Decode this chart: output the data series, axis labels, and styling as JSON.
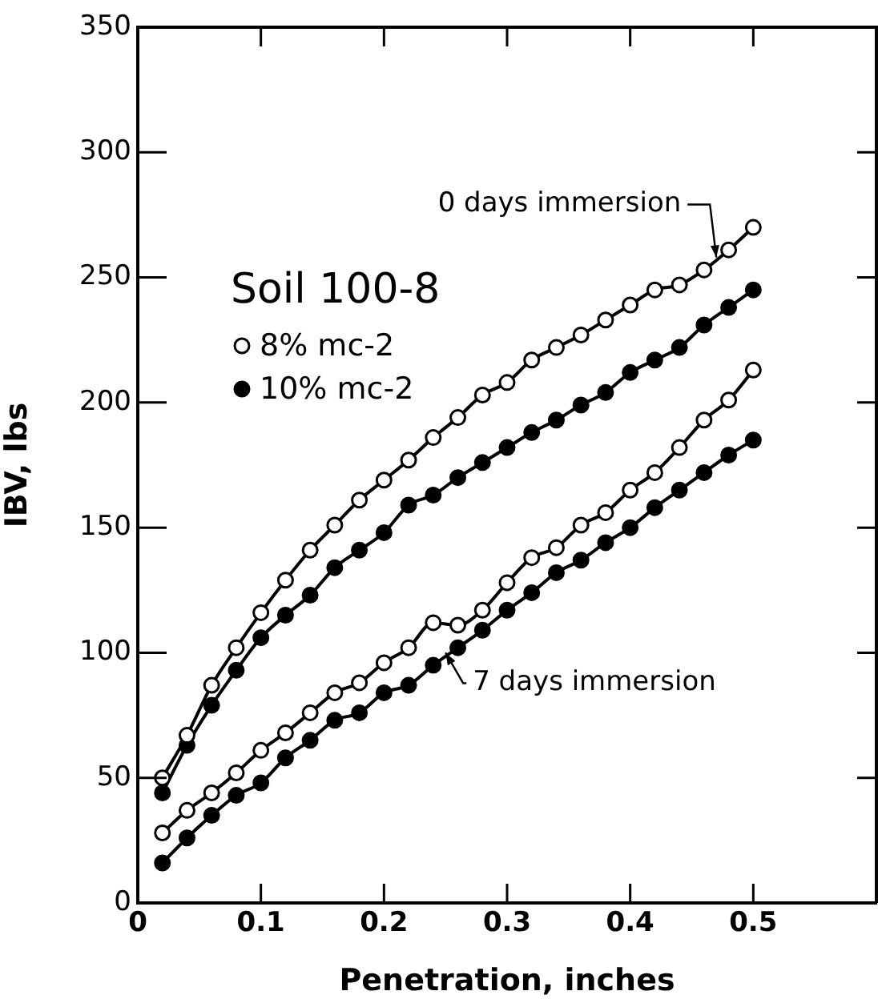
{
  "chart_data": {
    "type": "line",
    "xlabel": "Penetration, inches",
    "ylabel": "IBV, lbs",
    "legend_title": "Soil 100-8",
    "legend": "top left",
    "marker": "circle",
    "line_style": "solid",
    "grid": false,
    "xlim": [
      0,
      0.6
    ],
    "xticks": [
      0,
      0.1,
      0.2,
      0.3,
      0.4,
      0.5
    ],
    "ylim": [
      0,
      350
    ],
    "yticks": [
      0,
      50,
      100,
      150,
      200,
      250,
      300,
      350
    ],
    "x": [
      0.02,
      0.04,
      0.06,
      0.08,
      0.1,
      0.12,
      0.14,
      0.16,
      0.18,
      0.2,
      0.22,
      0.24,
      0.26,
      0.28,
      0.3,
      0.32,
      0.34,
      0.36,
      0.38,
      0.4,
      0.42,
      0.44,
      0.46,
      0.48,
      0.5
    ],
    "series": [
      {
        "name": "8% mc-2",
        "color": "#ffffff",
        "values": [
          50,
          67,
          87,
          102,
          116,
          129,
          141,
          151,
          161,
          169,
          177,
          186,
          194,
          203,
          208,
          217,
          222,
          227,
          233,
          239,
          245,
          247,
          253,
          261,
          270
        ]
      },
      {
        "name": "10% mc-2",
        "color": "#000000",
        "values": [
          44,
          63,
          79,
          93,
          106,
          115,
          123,
          134,
          141,
          148,
          159,
          163,
          170,
          176,
          182,
          188,
          193,
          199,
          204,
          212,
          217,
          222,
          231,
          238,
          245
        ]
      },
      {
        "color": "#ffffff",
        "values": [
          28,
          37,
          44,
          52,
          61,
          68,
          76,
          84,
          88,
          96,
          102,
          112,
          111,
          117,
          128,
          138,
          142,
          151,
          156,
          165,
          172,
          182,
          193,
          201,
          213
        ]
      },
      {
        "color": "#000000",
        "values": [
          16,
          26,
          35,
          43,
          48,
          58,
          65,
          73,
          76,
          84,
          87,
          95,
          102,
          109,
          117,
          124,
          132,
          137,
          144,
          150,
          158,
          165,
          172,
          179,
          185
        ]
      }
    ],
    "annotations": [
      {
        "text": "0 days immersion",
        "x": 0.47,
        "y": 258
      },
      {
        "text": "7 days immersion",
        "x": 0.25,
        "y": 100
      }
    ]
  }
}
